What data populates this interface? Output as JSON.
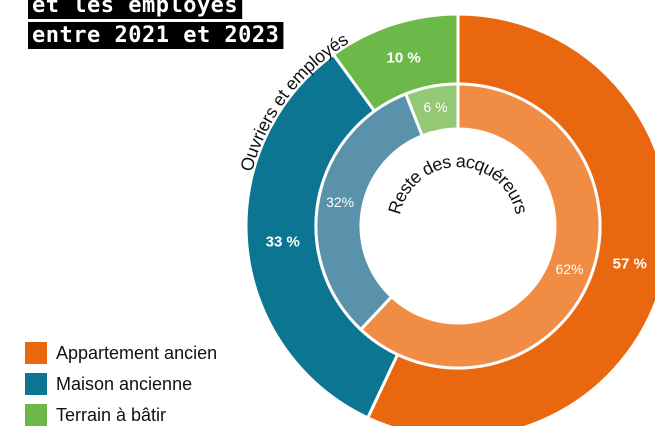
{
  "chart_data": {
    "type": "donut",
    "title_lines": [
      "et les employés",
      "entre 2021 et 2023"
    ],
    "categories": [
      "Appartement ancien",
      "Maison ancienne",
      "Terrain à bâtir"
    ],
    "series": [
      {
        "name": "Ouvriers et employés",
        "colors": [
          "#e9670f",
          "#0b7592",
          "#6cb94a"
        ],
        "values": [
          57,
          33,
          10
        ],
        "value_labels": [
          "57 %",
          "33 %",
          "10 %"
        ]
      },
      {
        "name": "Reste des acquéreurs",
        "colors": [
          "#f08c44",
          "#5a91ab",
          "#94c874"
        ],
        "values": [
          62,
          32,
          6
        ],
        "value_labels": [
          "62%",
          "32%",
          "6 %"
        ]
      }
    ],
    "legend": "bottom-left"
  }
}
